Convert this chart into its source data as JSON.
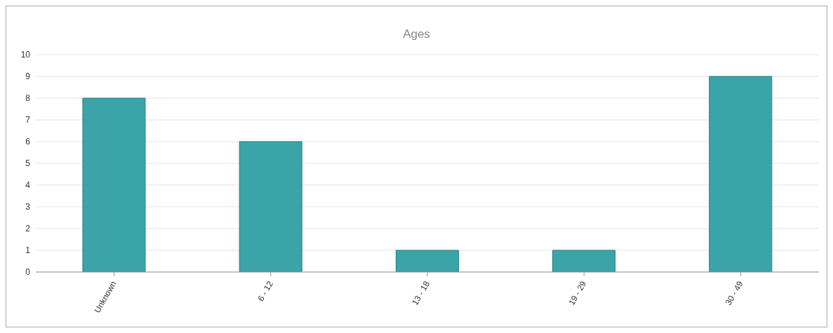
{
  "chart_data": {
    "type": "bar",
    "title": "Ages",
    "categories": [
      "Unknown",
      "6 - 12",
      "13 - 18",
      "19 - 29",
      "30 - 49"
    ],
    "values": [
      8,
      6,
      1,
      1,
      9
    ],
    "color": "#3ba4a9",
    "ylim": [
      0,
      10
    ],
    "yticks": [
      0,
      1,
      2,
      3,
      4,
      5,
      6,
      7,
      8,
      9,
      10
    ],
    "grid": "y",
    "legend": false
  }
}
